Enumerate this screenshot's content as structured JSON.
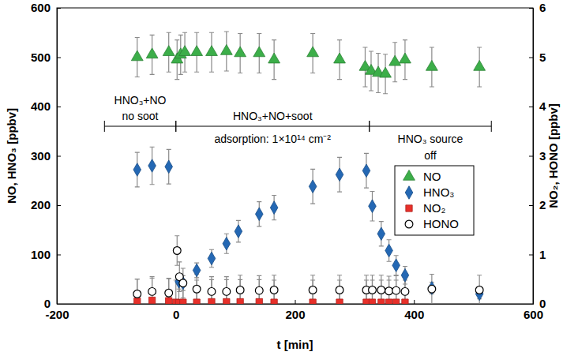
{
  "chart_data": {
    "type": "scatter",
    "xlabel": "t [min]",
    "ylabel": "NO, HNO₃ [ppbv]",
    "y2label": "NO₂, HONO [ppbv]",
    "xlim": [
      -200,
      600
    ],
    "xticks": [
      -200,
      0,
      200,
      400,
      600
    ],
    "ylim": [
      0,
      600
    ],
    "yticks": [
      0,
      100,
      200,
      300,
      400,
      500,
      600
    ],
    "y2lim": [
      0,
      6
    ],
    "y2ticks": [
      0,
      1,
      2,
      3,
      4,
      5,
      6
    ],
    "legend": "right",
    "grid": false,
    "phases": [
      {
        "start": -120,
        "end": 0,
        "above": [
          "HNO₃+NO",
          "no soot"
        ],
        "below": []
      },
      {
        "start": 0,
        "end": 325,
        "above": [
          "HNO₃+NO+soot"
        ],
        "below": [
          "adsorption: 1×10¹⁴ cm⁻²"
        ]
      },
      {
        "start": 325,
        "end": 530,
        "above": [],
        "below": [
          "HNO₃ source",
          "off"
        ]
      }
    ],
    "series": [
      {
        "name": "NO",
        "color": "#3cae49",
        "marker": "triangle",
        "axis": "y",
        "x": [
          -65,
          -40,
          -12,
          2,
          8,
          15,
          35,
          60,
          85,
          108,
          140,
          165,
          230,
          275,
          318,
          328,
          340,
          352,
          368,
          385,
          430,
          510
        ],
        "values": [
          500,
          505,
          510,
          495,
          505,
          510,
          510,
          510,
          512,
          508,
          508,
          495,
          508,
          495,
          480,
          472,
          468,
          466,
          490,
          495,
          480,
          480
        ],
        "errors": [
          40,
          40,
          40,
          40,
          40,
          40,
          40,
          40,
          40,
          40,
          40,
          40,
          40,
          40,
          40,
          40,
          40,
          40,
          40,
          40,
          40,
          40
        ]
      },
      {
        "name": "HNO₃",
        "color": "#2468b4",
        "marker": "diamond",
        "axis": "y",
        "x": [
          -65,
          -40,
          -12,
          5,
          12,
          35,
          60,
          85,
          105,
          140,
          165,
          230,
          275,
          320,
          330,
          345,
          358,
          370,
          385,
          430,
          510
        ],
        "values": [
          272,
          280,
          278,
          45,
          42,
          68,
          92,
          122,
          147,
          182,
          195,
          238,
          262,
          270,
          198,
          142,
          108,
          78,
          58,
          32,
          20
        ],
        "errors": [
          35,
          38,
          35,
          15,
          15,
          15,
          18,
          20,
          22,
          25,
          25,
          35,
          35,
          35,
          30,
          25,
          22,
          20,
          18,
          12,
          10
        ]
      },
      {
        "name": "NO₂",
        "color": "#e8302a",
        "marker": "square",
        "axis": "y2",
        "x": [
          -65,
          -40,
          -12,
          0,
          5,
          12,
          35,
          60,
          85,
          108,
          140,
          165,
          230,
          275,
          320,
          330,
          345,
          358,
          370,
          385
        ],
        "values": [
          0.05,
          0.07,
          0.06,
          0.03,
          0.02,
          0.03,
          0.03,
          0.04,
          0.04,
          0.04,
          0.04,
          0.03,
          0.03,
          0.03,
          0.03,
          0.03,
          0.03,
          0.03,
          0.03,
          0.03
        ],
        "errors": [
          0.45,
          0.45,
          0.45,
          0.45,
          0.45,
          0.45,
          0.45,
          0.45,
          0.45,
          0.45,
          0.45,
          0.45,
          0.45,
          0.45,
          0.45,
          0.45,
          0.45,
          0.45,
          0.45,
          0.45
        ]
      },
      {
        "name": "HONO",
        "color": "#000000",
        "marker": "open-circle",
        "axis": "y2",
        "x": [
          -65,
          -40,
          -12,
          2,
          6,
          12,
          35,
          60,
          85,
          108,
          140,
          165,
          230,
          275,
          320,
          330,
          345,
          358,
          370,
          385,
          430,
          510
        ],
        "values": [
          0.2,
          0.25,
          0.22,
          1.08,
          0.55,
          0.42,
          0.3,
          0.25,
          0.25,
          0.28,
          0.27,
          0.28,
          0.28,
          0.28,
          0.28,
          0.28,
          0.28,
          0.26,
          0.27,
          0.25,
          0.3,
          0.28
        ],
        "errors": [
          0.3,
          0.3,
          0.3,
          0.3,
          0.3,
          0.3,
          0.3,
          0.3,
          0.3,
          0.3,
          0.3,
          0.3,
          0.3,
          0.3,
          0.3,
          0.3,
          0.3,
          0.3,
          0.3,
          0.3,
          0.3,
          0.3
        ]
      }
    ]
  }
}
